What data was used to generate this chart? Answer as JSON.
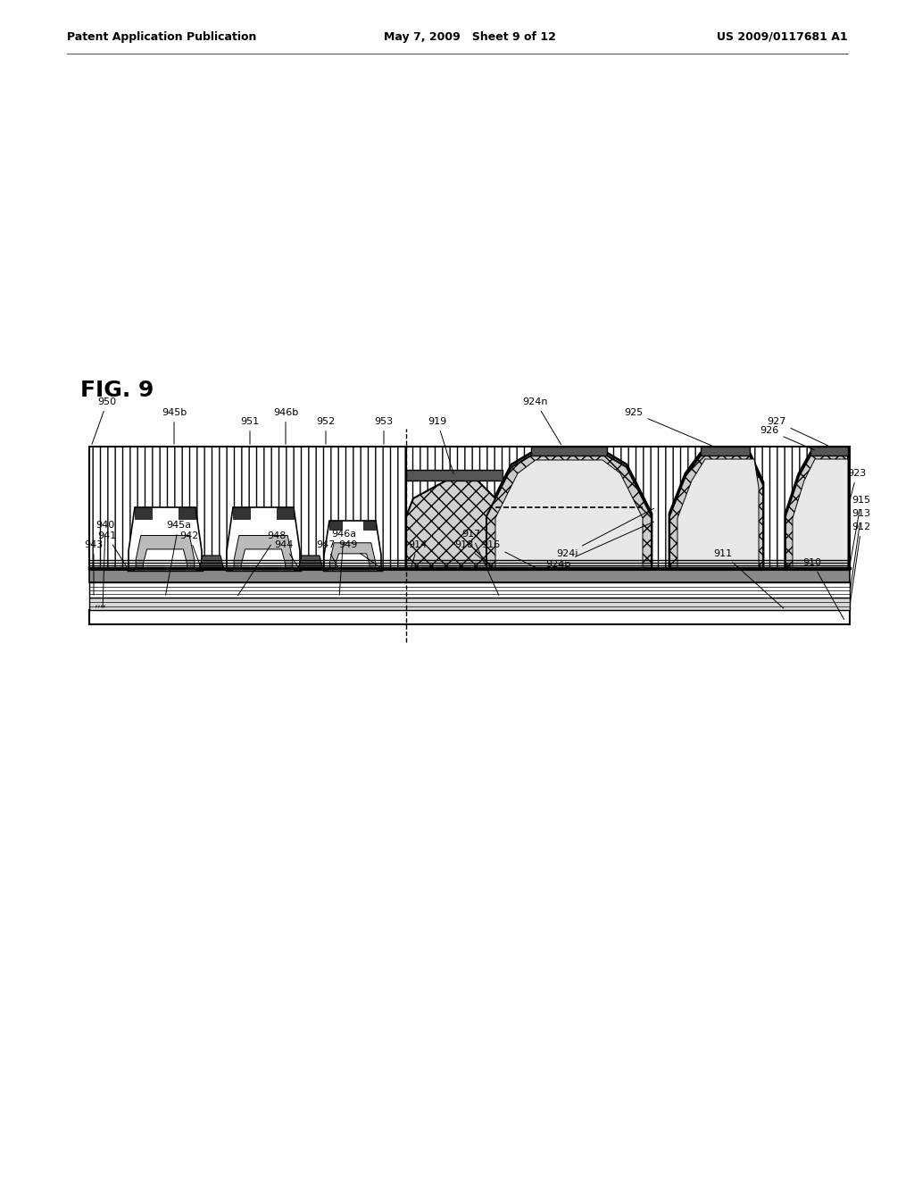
{
  "fig_label": "FIG. 9",
  "header_left": "Patent Application Publication",
  "header_mid": "May 7, 2009   Sheet 9 of 12",
  "header_right": "US 2009/0117681 A1",
  "bg_color": "#ffffff"
}
